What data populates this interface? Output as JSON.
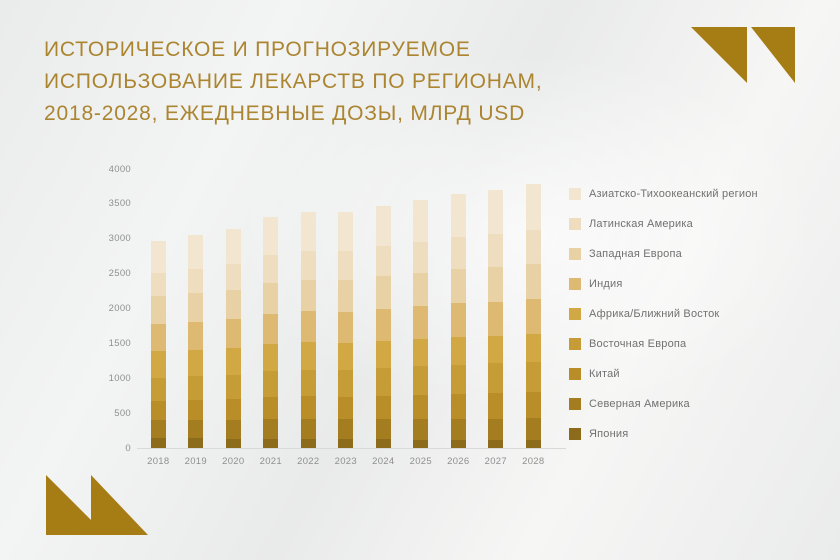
{
  "slide": {
    "title_lines": [
      "ИСТОРИЧЕСКОЕ И ПРОГНОЗИРУЕМОЕ",
      "ИСПОЛЬЗОВАНИЕ ЛЕКАРСТВ ПО РЕГИОНАМ,",
      "2018-2028, ЕЖЕДНЕВНЫЕ ДОЗЫ, МЛРД USD"
    ]
  },
  "colors": {
    "brand_gold": "#a67c15",
    "title_text": "#ab8530",
    "axis_text": "#8f8f8f",
    "legend_text": "#717171",
    "axis_line": "#d9d9d9"
  },
  "chart_data": {
    "type": "bar",
    "subtype": "stacked-vertical",
    "title": "Историческое и прогнозируемое использование лекарств по регионам, 2018-2028, ежедневные дозы, млрд USD",
    "categories": [
      "2018",
      "2019",
      "2020",
      "2021",
      "2022",
      "2023",
      "2024",
      "2025",
      "2026",
      "2027",
      "2028"
    ],
    "series": [
      {
        "name": "Азиатско-Тихоокеанский регион",
        "color": "#f2e6d0",
        "values": [
          460,
          479,
          500,
          542,
          557,
          555,
          578,
          597,
          618,
          631,
          650
        ]
      },
      {
        "name": "Латинская Америка",
        "color": "#efddbf",
        "values": [
          335,
          351,
          368,
          402,
          414,
          414,
          431,
          447,
          464,
          475,
          490
        ]
      },
      {
        "name": "Западная Европа",
        "color": "#e8d1a4",
        "values": [
          405,
          415,
          426,
          448,
          456,
          456,
          467,
          477,
          488,
          495,
          505
        ]
      },
      {
        "name": "Индия",
        "color": "#ddb972",
        "values": [
          385,
          397,
          409,
          434,
          444,
          444,
          456,
          468,
          480,
          489,
          500
        ]
      },
      {
        "name": "Африка/Ближний Восток",
        "color": "#d2a845",
        "values": [
          380,
          382,
          384,
          389,
          390,
          390,
          392,
          394,
          397,
          398,
          400
        ]
      },
      {
        "name": "Восточная Европа",
        "color": "#c69c36",
        "values": [
          335,
          345,
          355,
          376,
          384,
          384,
          394,
          403,
          414,
          421,
          430
        ]
      },
      {
        "name": "Китай",
        "color": "#b98e28",
        "values": [
          265,
          277,
          289,
          314,
          324,
          324,
          336,
          348,
          360,
          369,
          380
        ]
      },
      {
        "name": "Северная Америка",
        "color": "#a47d20",
        "values": [
          265,
          270,
          274,
          284,
          288,
          288,
          293,
          297,
          302,
          306,
          310
        ]
      },
      {
        "name": "Япония",
        "color": "#8c6b1a",
        "values": [
          140,
          138,
          135,
          129,
          127,
          126,
          125,
          122,
          119,
          118,
          115
        ]
      }
    ],
    "stacking_note": "series listed top-of-stack first; bottom segment of each bar is the last series (Япония)",
    "totals_by_year": [
      2970,
      3054,
      3140,
      3318,
      3384,
      3381,
      3472,
      3553,
      3642,
      3702,
      3780
    ],
    "y_ticks": [
      0,
      500,
      1000,
      1500,
      2000,
      2500,
      3000,
      3500,
      4000
    ],
    "ylim": [
      0,
      4000
    ],
    "grid": "none",
    "legend_position": "right"
  }
}
